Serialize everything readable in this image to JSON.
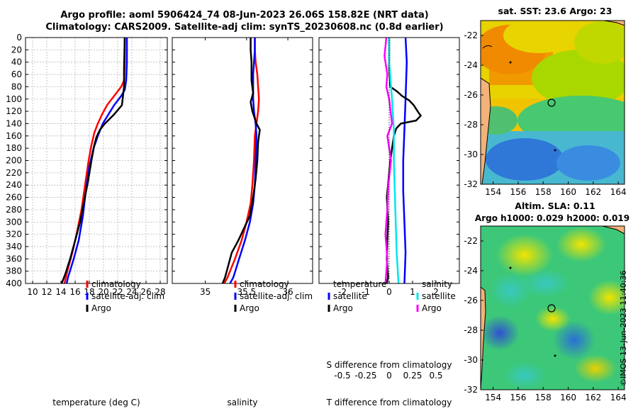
{
  "title": {
    "line1": "Argo profile: aoml 5906424_74 08-Jun-2023 26.06S 158.82E (NRT data)",
    "line2": "Climatology: CARS2009. Satellite-adj clim: synTS_20230608.nc (0.8d earlier)"
  },
  "depth_ticks": [
    "0",
    "20",
    "40",
    "60",
    "80",
    "100",
    "120",
    "140",
    "160",
    "180",
    "200",
    "220",
    "240",
    "260",
    "280",
    "300",
    "320",
    "340",
    "360",
    "380",
    "400"
  ],
  "colors": {
    "climatology": "#ff0000",
    "satellite": "#0000ff",
    "argo": "#000000",
    "sal_satellite": "#00e5ee",
    "sal_argo": "#ff00ff"
  },
  "chart_data": [
    {
      "type": "line",
      "name": "temperature",
      "xlabel": "temperature (deg C)",
      "ylabel": "",
      "xlim": [
        9,
        29
      ],
      "ylim": [
        400,
        0
      ],
      "xticks": [
        "10",
        "12",
        "14",
        "16",
        "18",
        "20",
        "22",
        "24",
        "26",
        "28"
      ],
      "grid": true,
      "legend": [
        "climatology",
        "satellite-adj. clim",
        "Argo"
      ],
      "series": [
        {
          "name": "climatology",
          "color": "#ff0000",
          "points": [
            [
              23.0,
              0
            ],
            [
              23.0,
              40
            ],
            [
              22.9,
              70
            ],
            [
              22.5,
              80
            ],
            [
              21.5,
              95
            ],
            [
              20.5,
              110
            ],
            [
              19.8,
              125
            ],
            [
              19.2,
              140
            ],
            [
              18.7,
              155
            ],
            [
              18.3,
              175
            ],
            [
              17.9,
              200
            ],
            [
              17.4,
              240
            ],
            [
              16.9,
              280
            ],
            [
              16.2,
              320
            ],
            [
              15.6,
              350
            ],
            [
              14.9,
              380
            ],
            [
              14.5,
              400
            ]
          ]
        },
        {
          "name": "satellite-adj. clim",
          "color": "#0000ff",
          "points": [
            [
              23.3,
              0
            ],
            [
              23.3,
              40
            ],
            [
              23.2,
              70
            ],
            [
              23.0,
              85
            ],
            [
              22.5,
              95
            ],
            [
              21.5,
              110
            ],
            [
              20.7,
              125
            ],
            [
              19.9,
              140
            ],
            [
              19.2,
              160
            ],
            [
              18.6,
              180
            ],
            [
              18.0,
              210
            ],
            [
              17.5,
              250
            ],
            [
              17.1,
              290
            ],
            [
              16.5,
              330
            ],
            [
              15.8,
              360
            ],
            [
              15.0,
              390
            ],
            [
              14.8,
              400
            ]
          ]
        },
        {
          "name": "Argo",
          "color": "#000000",
          "points": [
            [
              23.0,
              0
            ],
            [
              22.9,
              50
            ],
            [
              22.9,
              80
            ],
            [
              22.8,
              90
            ],
            [
              22.7,
              100
            ],
            [
              22.6,
              110
            ],
            [
              21.5,
              125
            ],
            [
              20.2,
              140
            ],
            [
              19.5,
              150
            ],
            [
              19.0,
              162
            ],
            [
              18.7,
              175
            ],
            [
              18.3,
              200
            ],
            [
              17.8,
              235
            ],
            [
              17.2,
              270
            ],
            [
              16.7,
              300
            ],
            [
              16.0,
              330
            ],
            [
              15.3,
              360
            ],
            [
              14.6,
              385
            ],
            [
              14.1,
              400
            ]
          ]
        }
      ]
    },
    {
      "type": "line",
      "name": "salinity",
      "xlabel": "salinity",
      "ylabel": "",
      "xlim": [
        34.6,
        36.3
      ],
      "ylim": [
        400,
        0
      ],
      "xticks": [
        "35",
        "35.5",
        "36"
      ],
      "grid": false,
      "legend": [
        "climatology",
        "satellite-adj. clim",
        "Argo"
      ],
      "series": [
        {
          "name": "climatology",
          "color": "#ff0000",
          "points": [
            [
              35.6,
              0
            ],
            [
              35.6,
              20
            ],
            [
              35.61,
              40
            ],
            [
              35.63,
              60
            ],
            [
              35.64,
              80
            ],
            [
              35.65,
              100
            ],
            [
              35.64,
              120
            ],
            [
              35.62,
              140
            ],
            [
              35.6,
              160
            ],
            [
              35.59,
              200
            ],
            [
              35.57,
              240
            ],
            [
              35.55,
              270
            ],
            [
              35.5,
              300
            ],
            [
              35.44,
              330
            ],
            [
              35.36,
              360
            ],
            [
              35.27,
              390
            ],
            [
              35.23,
              400
            ]
          ]
        },
        {
          "name": "satellite-adj. clim",
          "color": "#0000ff",
          "points": [
            [
              35.6,
              0
            ],
            [
              35.6,
              20
            ],
            [
              35.59,
              40
            ],
            [
              35.58,
              60
            ],
            [
              35.58,
              80
            ],
            [
              35.58,
              100
            ],
            [
              35.59,
              120
            ],
            [
              35.61,
              140
            ],
            [
              35.62,
              160
            ],
            [
              35.61,
              200
            ],
            [
              35.6,
              240
            ],
            [
              35.58,
              270
            ],
            [
              35.54,
              300
            ],
            [
              35.48,
              330
            ],
            [
              35.41,
              360
            ],
            [
              35.34,
              390
            ],
            [
              35.3,
              400
            ]
          ]
        },
        {
          "name": "Argo",
          "color": "#000000",
          "points": [
            [
              35.55,
              0
            ],
            [
              35.55,
              20
            ],
            [
              35.56,
              40
            ],
            [
              35.56,
              70
            ],
            [
              35.58,
              90
            ],
            [
              35.55,
              105
            ],
            [
              35.57,
              120
            ],
            [
              35.62,
              140
            ],
            [
              35.66,
              150
            ],
            [
              35.64,
              170
            ],
            [
              35.63,
              200
            ],
            [
              35.61,
              230
            ],
            [
              35.58,
              260
            ],
            [
              35.54,
              290
            ],
            [
              35.47,
              310
            ],
            [
              35.4,
              330
            ],
            [
              35.32,
              350
            ],
            [
              35.28,
              370
            ],
            [
              35.24,
              390
            ],
            [
              35.21,
              400
            ]
          ]
        }
      ]
    },
    {
      "type": "line",
      "name": "difference",
      "xlabel": "T difference from climatology",
      "x2label": "S difference from climatology",
      "xlim": [
        -3,
        3
      ],
      "ylim": [
        400,
        0
      ],
      "xticks": [
        "-2",
        "-1",
        "0",
        "1",
        "2"
      ],
      "x2ticks": [
        "-0.5",
        "-0.25",
        "0",
        "0.25",
        "0.5"
      ],
      "grid": false,
      "legend_t": [
        "temperature",
        "satellite",
        "Argo"
      ],
      "legend_s": [
        "salinity",
        "satellite",
        "Argo"
      ],
      "series": [
        {
          "name": "temperature satellite",
          "color": "#0000ff",
          "points": [
            [
              0.7,
              0
            ],
            [
              0.75,
              40
            ],
            [
              0.7,
              100
            ],
            [
              0.65,
              150
            ],
            [
              0.6,
              200
            ],
            [
              0.6,
              250
            ],
            [
              0.65,
              300
            ],
            [
              0.7,
              350
            ],
            [
              0.65,
              400
            ]
          ]
        },
        {
          "name": "temperature Argo",
          "color": "#000000",
          "points": [
            [
              0,
              0
            ],
            [
              0,
              50
            ],
            [
              0.05,
              80
            ],
            [
              0.35,
              88
            ],
            [
              0.55,
              95
            ],
            [
              0.85,
              102
            ],
            [
              1.05,
              110
            ],
            [
              1.25,
              122
            ],
            [
              1.35,
              127
            ],
            [
              1.15,
              135
            ],
            [
              0.5,
              140
            ],
            [
              0.3,
              148
            ],
            [
              0.2,
              160
            ],
            [
              0.05,
              200
            ],
            [
              -0.1,
              260
            ],
            [
              -0.05,
              300
            ],
            [
              -0.08,
              330
            ],
            [
              -0.1,
              360
            ],
            [
              -0.05,
              390
            ],
            [
              -0.1,
              400
            ]
          ]
        },
        {
          "name": "salinity satellite",
          "color": "#00e5ee",
          "points": [
            [
              0,
              0
            ],
            [
              0,
              40
            ],
            [
              0.03,
              100
            ],
            [
              0.05,
              150
            ],
            [
              0.05,
              200
            ],
            [
              0.06,
              250
            ],
            [
              0.07,
              300
            ],
            [
              0.08,
              350
            ],
            [
              0.1,
              400
            ]
          ]
        },
        {
          "name": "salinity Argo",
          "color": "#ff00ff",
          "points": [
            [
              -0.03,
              0
            ],
            [
              -0.05,
              30
            ],
            [
              -0.02,
              60
            ],
            [
              -0.03,
              80
            ],
            [
              0.0,
              100
            ],
            [
              0.03,
              140
            ],
            [
              -0.02,
              160
            ],
            [
              0.02,
              200
            ],
            [
              -0.01,
              240
            ],
            [
              -0.02,
              280
            ],
            [
              -0.04,
              320
            ],
            [
              -0.02,
              360
            ],
            [
              -0.04,
              400
            ]
          ]
        }
      ]
    }
  ],
  "map_top": {
    "title": "sat. SST: 23.6 Argo: 23",
    "xticks": [
      "154",
      "156",
      "158",
      "160",
      "162",
      "164"
    ],
    "yticks": [
      "-22",
      "-24",
      "-26",
      "-28",
      "-30",
      "-32"
    ]
  },
  "map_bottom": {
    "title_line1": "Altim. SLA: 0.11",
    "title_line2": "Argo h1000: 0.029 h2000: 0.019",
    "xticks": [
      "154",
      "156",
      "158",
      "160",
      "162",
      "164"
    ],
    "yticks": [
      "-22",
      "-24",
      "-26",
      "-28",
      "-30",
      "-32"
    ]
  },
  "side_note": "©IMOS 13-Jun-2023 11:40:36"
}
